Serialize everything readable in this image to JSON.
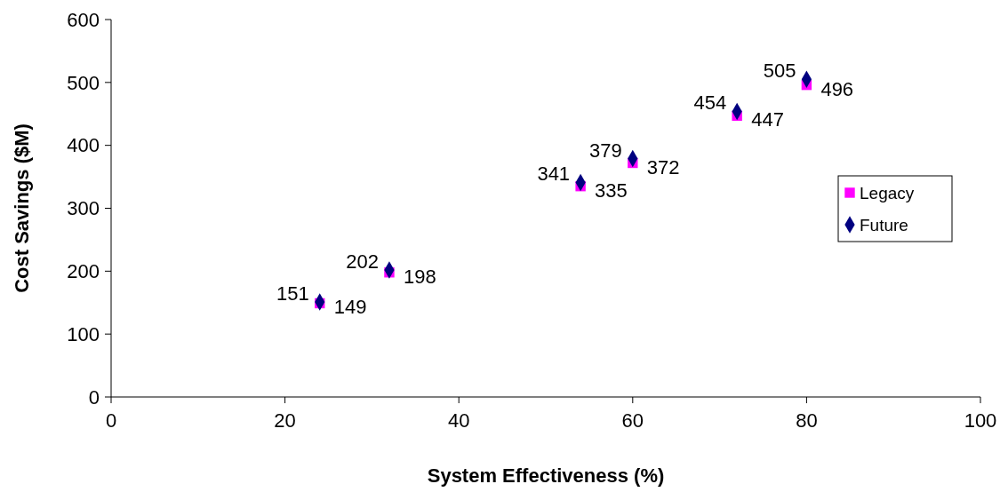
{
  "chart_data": {
    "type": "scatter",
    "xlabel": "System Effectiveness (%)",
    "ylabel": "Cost Savings ($M)",
    "x": [
      24,
      32,
      54,
      60,
      72,
      80
    ],
    "series": [
      {
        "name": "Legacy",
        "color": "#ff00ff",
        "marker": "square",
        "values": [
          149,
          198,
          335,
          372,
          447,
          496
        ]
      },
      {
        "name": "Future",
        "color": "#000080",
        "marker": "diamond",
        "values": [
          151,
          202,
          341,
          379,
          454,
          505
        ]
      }
    ],
    "xlim": [
      0,
      100
    ],
    "xticks": [
      0,
      20,
      40,
      60,
      80,
      100
    ],
    "ylim": [
      0,
      600
    ],
    "yticks": [
      0,
      100,
      200,
      300,
      400,
      500,
      600
    ],
    "data_labels": true,
    "legend": "right",
    "grid": false
  }
}
